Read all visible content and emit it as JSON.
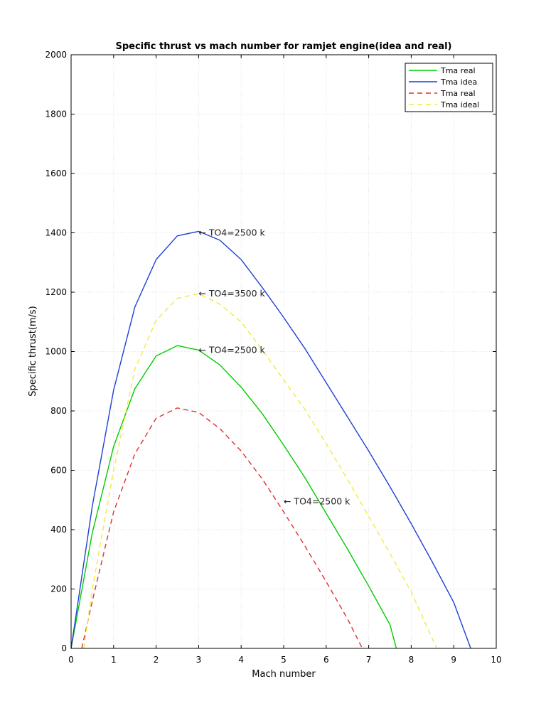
{
  "chart_data": {
    "type": "line",
    "title": "Specific thrust vs mach number for ramjet engine(idea and real)",
    "xlabel": "Mach number",
    "ylabel": "Specific thrust(m/s)",
    "xlim": [
      0,
      10
    ],
    "ylim": [
      0,
      2000
    ],
    "xticks": [
      "0",
      "1",
      "2",
      "3",
      "4",
      "5",
      "6",
      "7",
      "8",
      "9",
      "10"
    ],
    "yticks": [
      "0",
      "200",
      "400",
      "600",
      "800",
      "1000",
      "1200",
      "1400",
      "1600",
      "1800",
      "2000"
    ],
    "grid": true,
    "legend_position": "top-right",
    "series": [
      {
        "name": "Tma real",
        "color": "#00cc00",
        "style": "solid",
        "x": [
          0,
          0.5,
          1,
          1.5,
          2,
          2.5,
          3,
          3.5,
          4,
          4.5,
          5,
          5.5,
          6,
          6.5,
          7,
          7.5,
          7.65
        ],
        "y": [
          0,
          390,
          680,
          875,
          985,
          1020,
          1005,
          955,
          880,
          790,
          685,
          575,
          455,
          335,
          210,
          80,
          0
        ]
      },
      {
        "name": "Tma idea",
        "color": "#1f3fd6",
        "style": "solid",
        "x": [
          0,
          0.5,
          1,
          1.5,
          2,
          2.5,
          3,
          3.5,
          4,
          4.5,
          5,
          5.5,
          6,
          6.5,
          7,
          7.5,
          8,
          8.5,
          9,
          9.4
        ],
        "y": [
          0,
          480,
          870,
          1150,
          1310,
          1390,
          1405,
          1375,
          1310,
          1215,
          1115,
          1010,
          895,
          780,
          665,
          545,
          420,
          290,
          155,
          0
        ]
      },
      {
        "name": "Tma real",
        "color": "#e03030",
        "style": "dashed",
        "x": [
          0.25,
          0.5,
          1,
          1.5,
          2,
          2.5,
          3,
          3.5,
          4,
          4.5,
          5,
          5.5,
          6,
          6.5,
          6.85
        ],
        "y": [
          0,
          160,
          460,
          655,
          775,
          810,
          795,
          740,
          665,
          570,
          460,
          345,
          225,
          100,
          0
        ]
      },
      {
        "name": "Tma ideal",
        "color": "#f2ea3c",
        "style": "dashed",
        "x": [
          0.3,
          0.5,
          1,
          1.5,
          2,
          2.5,
          3,
          3.5,
          4,
          4.5,
          5,
          5.5,
          6,
          6.5,
          7,
          7.5,
          8,
          8.6
        ],
        "y": [
          0,
          200,
          600,
          940,
          1105,
          1180,
          1195,
          1160,
          1100,
          1005,
          905,
          805,
          690,
          570,
          445,
          320,
          190,
          0
        ]
      }
    ],
    "annotations": [
      {
        "text": "← TO4=2500 k",
        "x": 3.0,
        "y": 1400
      },
      {
        "text": "← TO4=3500 k",
        "x": 3.0,
        "y": 1195
      },
      {
        "text": "← TO4=2500 k",
        "x": 3.0,
        "y": 1005
      },
      {
        "text": "← TO4=2500 k",
        "x": 5.0,
        "y": 495
      }
    ]
  }
}
